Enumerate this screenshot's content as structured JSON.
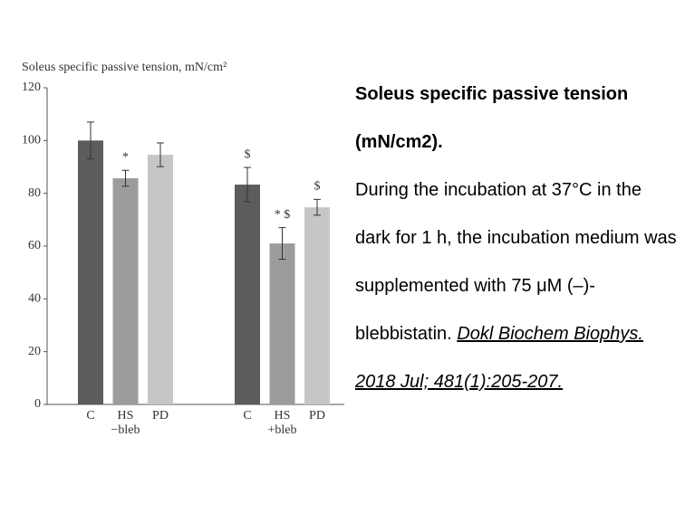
{
  "chart_data": {
    "type": "bar",
    "title": "Soleus specific passive tension, mN/cm²",
    "categories": [
      "C",
      "HS",
      "PD",
      "C",
      "HS",
      "PD"
    ],
    "groups": [
      "−bleb",
      "+bleb"
    ],
    "values": [
      100,
      85.7,
      94.6,
      83.3,
      61,
      74.7
    ],
    "errors": [
      7,
      3,
      4.5,
      6.5,
      6,
      3
    ],
    "colors": [
      "#5c5c5c",
      "#9c9c9c",
      "#c6c6c6",
      "#5c5c5c",
      "#9c9c9c",
      "#c6c6c6"
    ],
    "value_annotations": [
      null,
      "*",
      null,
      "$",
      "* $",
      "$"
    ],
    "ylim": [
      0,
      120
    ],
    "yticks": [
      0,
      20,
      40,
      60,
      80,
      100,
      120
    ]
  },
  "description": {
    "heading": "Soleus specific passive tension (mN/cm2).",
    "body": "During the incubation at 37°C in the dark for 1 h, the incubation medium was supplemented with 75 μM (–)-blebbistatin.",
    "citation": "Dokl Biochem Biophys. 2018 Jul; 481(1):205-207."
  }
}
